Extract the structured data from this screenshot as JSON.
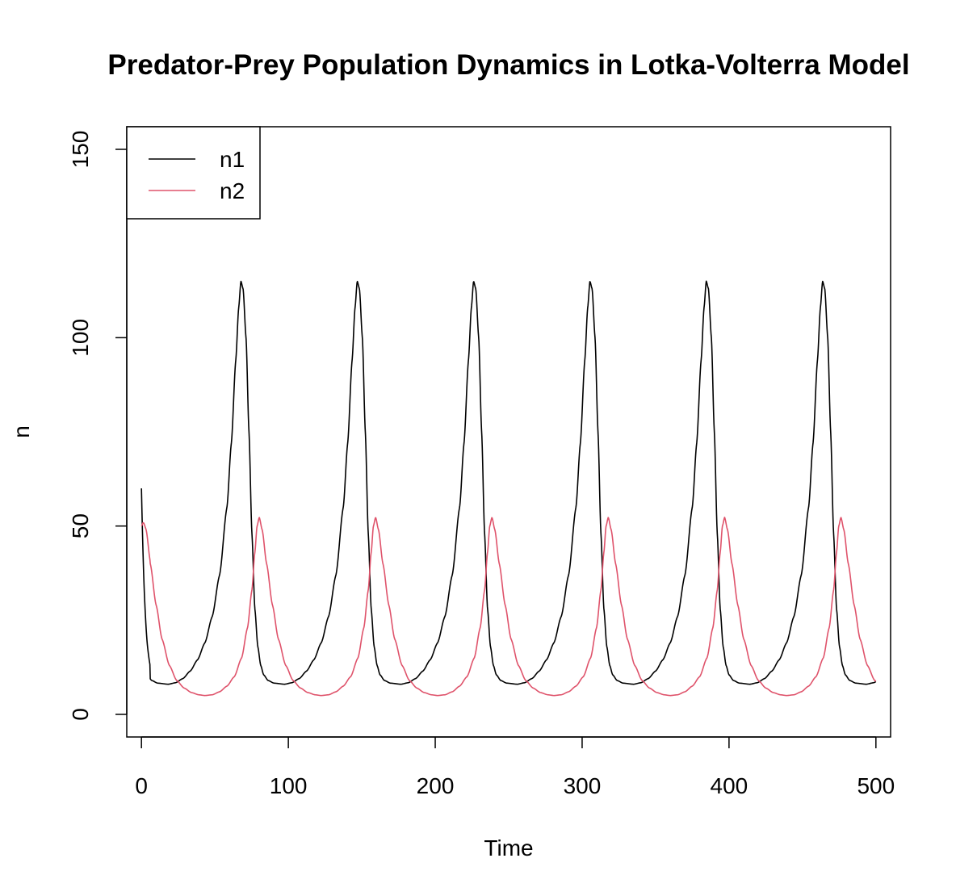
{
  "chart_data": {
    "type": "line",
    "title": "Predator-Prey Population Dynamics in Lotka-Volterra Model",
    "xlabel": "Time",
    "ylabel": "n",
    "xlim": [
      -10,
      510
    ],
    "ylim": [
      -6,
      156
    ],
    "xticks": [
      0,
      100,
      200,
      300,
      400,
      500
    ],
    "yticks": [
      0,
      50,
      100,
      150
    ],
    "x_tick_labels": [
      "0",
      "100",
      "200",
      "300",
      "400",
      "500"
    ],
    "y_tick_labels": [
      "0",
      "50",
      "100",
      "150"
    ],
    "legend_position": "top-left",
    "period": 79.2,
    "series": [
      {
        "name": "n1",
        "color": "#000000",
        "initial_point": [
          0,
          60
        ],
        "cycle": [
          [
            0,
            8
          ],
          [
            5,
            8.4
          ],
          [
            10,
            9.5
          ],
          [
            15,
            11.5
          ],
          [
            20,
            14.5
          ],
          [
            25,
            19
          ],
          [
            30,
            26
          ],
          [
            35,
            37
          ],
          [
            40,
            55
          ],
          [
            43,
            72
          ],
          [
            46,
            94
          ],
          [
            48,
            108
          ],
          [
            49.5,
            115
          ],
          [
            51,
            113
          ],
          [
            53,
            100
          ],
          [
            55,
            75
          ],
          [
            57,
            48
          ],
          [
            59,
            28
          ],
          [
            61,
            18
          ],
          [
            63,
            13
          ],
          [
            65,
            10.5
          ],
          [
            68,
            9
          ],
          [
            72,
            8.3
          ],
          [
            79.2,
            8
          ]
        ]
      },
      {
        "name": "n2",
        "color": "#DF536B",
        "initial_point": [
          0,
          50
        ],
        "cycle": [
          [
            0,
            5
          ],
          [
            5,
            5.2
          ],
          [
            10,
            6
          ],
          [
            15,
            7.5
          ],
          [
            20,
            10
          ],
          [
            25,
            15
          ],
          [
            29,
            23
          ],
          [
            32,
            33
          ],
          [
            34,
            43
          ],
          [
            35.5,
            50
          ],
          [
            37,
            52.3
          ],
          [
            39,
            49
          ],
          [
            42,
            40
          ],
          [
            46,
            29
          ],
          [
            50,
            20
          ],
          [
            55,
            13
          ],
          [
            60,
            9
          ],
          [
            65,
            7
          ],
          [
            70,
            5.8
          ],
          [
            75,
            5.2
          ],
          [
            79.2,
            5
          ]
        ]
      }
    ]
  }
}
